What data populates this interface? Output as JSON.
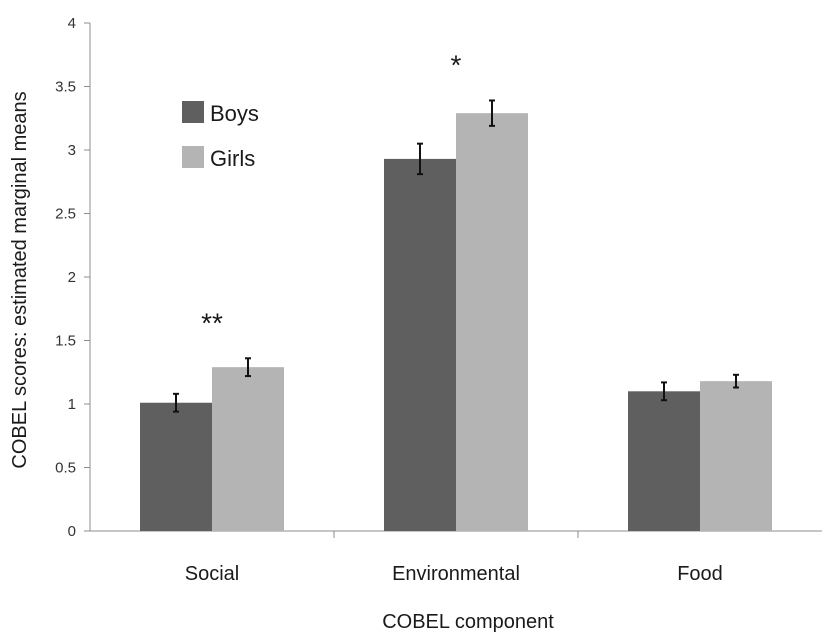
{
  "chart_data": {
    "type": "bar",
    "title": "",
    "xlabel": "COBEL component",
    "ylabel": "COBEL scores: estimated marginal means",
    "categories": [
      "Social",
      "Environmental",
      "Food"
    ],
    "series": [
      {
        "name": "Boys",
        "values": [
          1.01,
          2.93,
          1.1
        ],
        "errors": [
          0.07,
          0.12,
          0.07
        ],
        "color": "#5f5f5f"
      },
      {
        "name": "Girls",
        "values": [
          1.29,
          3.29,
          1.18
        ],
        "errors": [
          0.07,
          0.1,
          0.05
        ],
        "color": "#b4b4b4"
      }
    ],
    "ylim": [
      0,
      4
    ],
    "yticks": [
      "0",
      "0.5",
      "1",
      "1.5",
      "2",
      "2.5",
      "3",
      "3.5",
      "4"
    ],
    "significance": [
      "**",
      "*",
      ""
    ],
    "legend": {
      "position": "top-left"
    },
    "grid": false
  }
}
